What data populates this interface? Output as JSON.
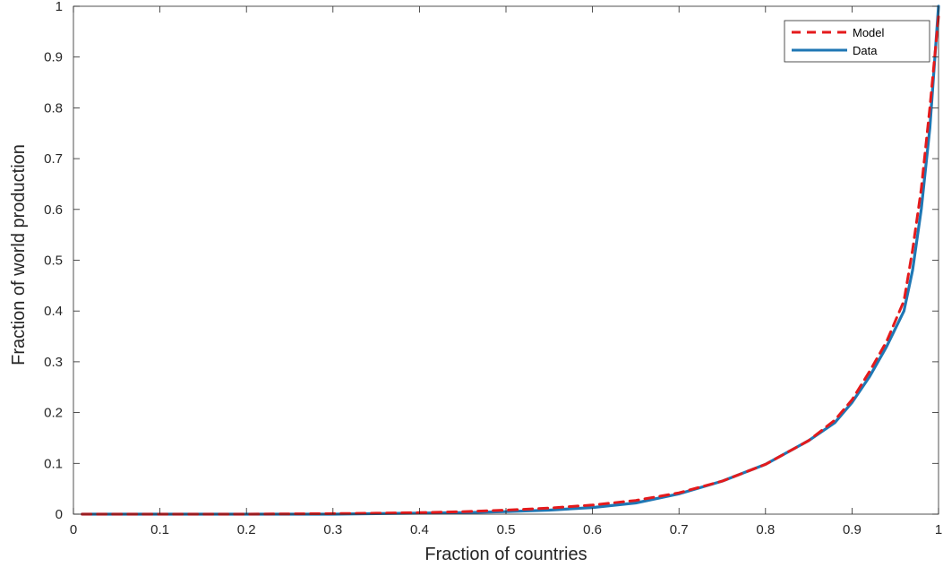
{
  "chart_data": {
    "type": "line",
    "xlabel": "Fraction of countries",
    "ylabel": "Fraction of world production",
    "xlim": [
      0,
      1
    ],
    "ylim": [
      0,
      1
    ],
    "xticks": [
      0,
      0.1,
      0.2,
      0.3,
      0.4,
      0.5,
      0.6,
      0.7,
      0.8,
      0.9,
      1
    ],
    "yticks": [
      0,
      0.1,
      0.2,
      0.3,
      0.4,
      0.5,
      0.6,
      0.7,
      0.8,
      0.9,
      1
    ],
    "xtick_labels": [
      "0",
      "0.1",
      "0.2",
      "0.3",
      "0.4",
      "0.5",
      "0.6",
      "0.7",
      "0.8",
      "0.9",
      "1"
    ],
    "ytick_labels": [
      "0",
      "0.1",
      "0.2",
      "0.3",
      "0.4",
      "0.5",
      "0.6",
      "0.7",
      "0.8",
      "0.9",
      "1"
    ],
    "grid": false,
    "legend_position": "top-right",
    "series": [
      {
        "name": "Model",
        "color": "#e41a1c",
        "style": "dashed",
        "x": [
          0.01,
          0.1,
          0.2,
          0.3,
          0.35,
          0.4,
          0.45,
          0.5,
          0.55,
          0.6,
          0.65,
          0.7,
          0.75,
          0.8,
          0.85,
          0.88,
          0.9,
          0.92,
          0.94,
          0.96,
          0.97,
          0.98,
          0.99,
          1.0
        ],
        "y": [
          0.0,
          0.0,
          0.0,
          0.001,
          0.002,
          0.003,
          0.005,
          0.008,
          0.012,
          0.018,
          0.027,
          0.042,
          0.065,
          0.098,
          0.145,
          0.185,
          0.225,
          0.28,
          0.34,
          0.42,
          0.52,
          0.64,
          0.8,
          0.98
        ]
      },
      {
        "name": "Data",
        "color": "#1f77b4",
        "style": "solid",
        "x": [
          0.01,
          0.1,
          0.2,
          0.3,
          0.35,
          0.4,
          0.45,
          0.5,
          0.55,
          0.6,
          0.65,
          0.7,
          0.75,
          0.8,
          0.85,
          0.88,
          0.9,
          0.92,
          0.94,
          0.96,
          0.97,
          0.98,
          0.99,
          1.0
        ],
        "y": [
          0.0,
          0.0,
          0.0,
          0.0,
          0.001,
          0.002,
          0.003,
          0.005,
          0.008,
          0.013,
          0.022,
          0.04,
          0.065,
          0.098,
          0.145,
          0.18,
          0.22,
          0.27,
          0.33,
          0.4,
          0.48,
          0.6,
          0.76,
          1.0
        ]
      }
    ]
  }
}
